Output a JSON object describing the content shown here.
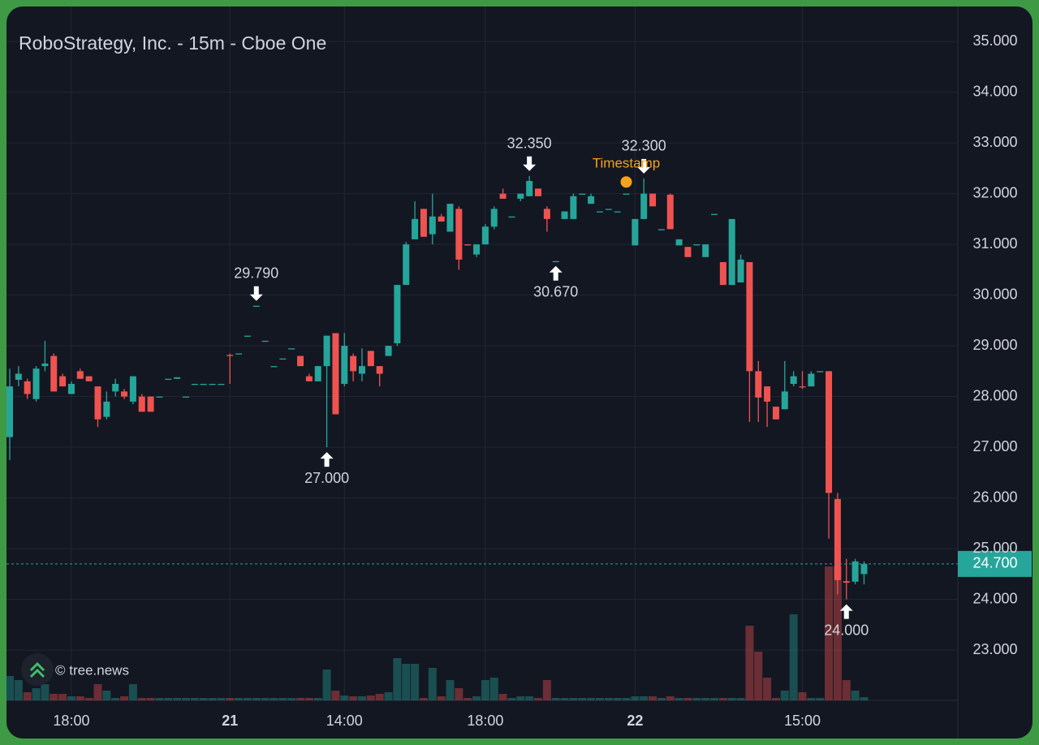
{
  "chart_data": {
    "type": "candlestick",
    "title": "RoboStrategy, Inc. - 15m - Cboe One",
    "watermark": "© tree.news",
    "categories": [
      null,
      null,
      null,
      null,
      null,
      null,
      null,
      "18:00",
      null,
      null,
      null,
      null,
      null,
      null,
      null,
      null,
      null,
      null,
      null,
      null,
      null,
      null,
      null,
      null,
      null,
      "21",
      null,
      null,
      null,
      null,
      null,
      null,
      null,
      null,
      null,
      null,
      null,
      null,
      "14:00",
      null,
      null,
      null,
      null,
      null,
      null,
      null,
      null,
      null,
      null,
      null,
      null,
      null,
      null,
      null,
      "18:00",
      null,
      null,
      null,
      null,
      null,
      null,
      null,
      null,
      null,
      null,
      null,
      null,
      null,
      null,
      null,
      null,
      "22",
      null,
      null,
      null,
      null,
      null,
      null,
      null,
      null,
      null,
      null,
      null,
      null,
      null,
      null,
      null,
      null,
      null,
      null,
      "15:00",
      null,
      null,
      null,
      null,
      null,
      null,
      null
    ],
    "series": [
      {
        "open": [
          27.2,
          28.33,
          28.3,
          27.95,
          28.6,
          28.8,
          28.4,
          28.05,
          28.5,
          28.4,
          28.2,
          27.6,
          28.1,
          28.1,
          27.9,
          28.0,
          28.0,
          28.0,
          28.35,
          28.35,
          28.0,
          28.25,
          28.25,
          28.25,
          28.25,
          28.82,
          28.85,
          29.2,
          29.79,
          29.1,
          28.6,
          28.75,
          28.95,
          28.8,
          28.4,
          28.3,
          28.6,
          29.25,
          28.25,
          28.8,
          28.45,
          28.9,
          28.6,
          28.8,
          29.05,
          30.2,
          31.1,
          31.7,
          31.2,
          31.55,
          31.25,
          31.7,
          31.0,
          30.8,
          31.0,
          31.35,
          32.0,
          31.55,
          31.9,
          31.95,
          32.1,
          31.7,
          30.67,
          31.5,
          31.5,
          32.0,
          31.8,
          31.65,
          31.7,
          31.65,
          32.0,
          30.98,
          31.5,
          32.0,
          31.3,
          31.98,
          30.98,
          30.95,
          31.0,
          30.75,
          31.6,
          30.65,
          30.2,
          30.25,
          30.65,
          28.5,
          28.2,
          27.8,
          27.75,
          28.25,
          28.2,
          28.2,
          28.5,
          28.5,
          25.98,
          24.36,
          24.35,
          24.5
        ],
        "high": [
          28.55,
          28.6,
          28.35,
          28.6,
          29.1,
          28.85,
          28.45,
          28.3,
          28.55,
          28.4,
          28.2,
          28.1,
          28.35,
          28.15,
          28.4,
          28.05,
          28.0,
          28.0,
          28.35,
          28.38,
          28.0,
          28.25,
          28.25,
          28.25,
          28.25,
          28.85,
          28.85,
          29.2,
          29.79,
          29.1,
          28.6,
          28.75,
          28.95,
          28.8,
          28.45,
          28.6,
          29.2,
          29.25,
          29.25,
          28.85,
          28.95,
          28.9,
          28.6,
          29.0,
          30.2,
          31.05,
          31.85,
          31.7,
          32.0,
          31.6,
          31.8,
          31.75,
          31.0,
          31.0,
          31.4,
          31.75,
          32.1,
          31.55,
          32.0,
          32.35,
          32.1,
          31.75,
          30.67,
          31.65,
          32.0,
          32.0,
          32.0,
          31.65,
          31.7,
          31.65,
          32.0,
          31.5,
          32.3,
          32.0,
          31.3,
          32.0,
          31.1,
          30.95,
          31.0,
          31.0,
          31.6,
          30.65,
          31.5,
          30.8,
          30.65,
          28.7,
          28.2,
          27.8,
          28.7,
          28.5,
          28.5,
          28.5,
          28.5,
          28.5,
          26.1,
          24.8,
          24.8,
          24.75
        ],
        "low": [
          26.75,
          28.2,
          27.95,
          27.9,
          28.5,
          28.1,
          28.2,
          28.05,
          28.35,
          28.3,
          27.4,
          27.55,
          28.0,
          27.95,
          27.85,
          27.7,
          27.7,
          28.0,
          28.35,
          28.35,
          28.0,
          28.25,
          28.25,
          28.25,
          28.25,
          28.25,
          28.85,
          29.2,
          29.79,
          29.1,
          28.6,
          28.75,
          28.95,
          28.6,
          28.3,
          28.3,
          27.0,
          27.65,
          28.2,
          28.3,
          28.3,
          28.6,
          28.2,
          28.8,
          29.0,
          30.2,
          31.1,
          31.15,
          31.0,
          31.45,
          31.25,
          30.5,
          30.98,
          30.75,
          31.0,
          31.3,
          31.9,
          31.55,
          31.85,
          31.95,
          31.95,
          31.25,
          30.67,
          31.5,
          31.5,
          32.0,
          31.8,
          31.65,
          31.7,
          31.65,
          32.0,
          30.98,
          31.5,
          31.75,
          31.3,
          31.3,
          30.98,
          30.75,
          31.0,
          30.75,
          31.6,
          30.2,
          30.2,
          30.25,
          27.5,
          27.5,
          27.4,
          27.55,
          27.75,
          28.2,
          28.15,
          28.2,
          28.5,
          25.2,
          24.1,
          24.0,
          24.3,
          24.3
        ],
        "close": [
          28.2,
          28.45,
          28.05,
          28.55,
          28.65,
          28.1,
          28.2,
          28.25,
          28.35,
          28.3,
          27.55,
          27.9,
          28.25,
          28.0,
          28.4,
          27.7,
          27.7,
          28.0,
          28.35,
          28.38,
          28.0,
          28.25,
          28.25,
          28.25,
          28.25,
          28.8,
          28.85,
          29.2,
          29.79,
          29.1,
          28.6,
          28.75,
          28.95,
          28.6,
          28.3,
          28.6,
          29.2,
          27.65,
          29.0,
          28.5,
          28.6,
          28.6,
          28.45,
          29.0,
          30.2,
          31.0,
          31.5,
          31.15,
          31.55,
          31.45,
          31.8,
          30.7,
          30.98,
          31.0,
          31.35,
          31.7,
          31.9,
          31.55,
          32.0,
          32.25,
          31.95,
          31.5,
          30.67,
          31.65,
          31.95,
          32.0,
          31.95,
          31.65,
          31.7,
          31.65,
          32.0,
          31.5,
          32.0,
          31.75,
          31.3,
          31.3,
          31.1,
          30.75,
          31.0,
          31.0,
          31.6,
          30.2,
          31.5,
          30.7,
          28.5,
          27.98,
          27.9,
          27.55,
          28.1,
          28.4,
          28.18,
          28.45,
          28.5,
          26.1,
          24.38,
          24.33,
          24.75,
          24.7
        ],
        "volume": [
          30,
          25,
          10,
          15,
          20,
          8,
          8,
          5,
          5,
          3,
          20,
          12,
          3,
          5,
          20,
          3,
          3,
          3,
          3,
          3,
          3,
          3,
          3,
          3,
          3,
          3,
          3,
          3,
          3,
          3,
          3,
          3,
          3,
          3,
          3,
          3,
          38,
          12,
          6,
          5,
          5,
          6,
          8,
          10,
          52,
          45,
          45,
          3,
          40,
          5,
          25,
          15,
          3,
          5,
          25,
          28,
          8,
          3,
          5,
          5,
          3,
          25,
          3,
          3,
          3,
          3,
          3,
          3,
          3,
          3,
          3,
          5,
          5,
          5,
          3,
          5,
          3,
          3,
          3,
          3,
          3,
          3,
          3,
          3,
          92,
          60,
          28,
          3,
          12,
          106,
          10,
          3,
          3,
          165,
          165,
          25,
          12,
          4
        ]
      }
    ],
    "up_color": "#26a69a",
    "down_color": "#ef5350",
    "ylim": [
      22.01,
      35.69
    ],
    "yticks": [
      {
        "value": 23,
        "label": "23.000"
      },
      {
        "value": 24,
        "label": "24.000"
      },
      {
        "value": 25,
        "label": "25.000"
      },
      {
        "value": 26,
        "label": "26.000"
      },
      {
        "value": 27,
        "label": "27.000"
      },
      {
        "value": 28,
        "label": "28.000"
      },
      {
        "value": 29,
        "label": "29.000"
      },
      {
        "value": 30,
        "label": "30.000"
      },
      {
        "value": 31,
        "label": "31.000"
      },
      {
        "value": 32,
        "label": "32.000"
      },
      {
        "value": 33,
        "label": "33.000"
      },
      {
        "value": 34,
        "label": "34.000"
      },
      {
        "value": 35,
        "label": "35.000"
      }
    ],
    "grid": true,
    "last_price": {
      "value": 24.7,
      "label": "24.700"
    },
    "annotations": [
      {
        "candle": 28,
        "kind": "high",
        "value": 29.79,
        "label": "29.790"
      },
      {
        "candle": 59,
        "kind": "high",
        "value": 32.35,
        "label": "32.350"
      },
      {
        "candle": 72,
        "kind": "high",
        "value": 32.3,
        "label": "32.300"
      },
      {
        "candle": 36,
        "kind": "low",
        "value": 27.0,
        "label": "27.000"
      },
      {
        "candle": 62,
        "kind": "low",
        "value": 30.67,
        "label": "30.670"
      },
      {
        "candle": 95,
        "kind": "low",
        "value": 24.0,
        "label": "24.000"
      }
    ],
    "timestamp": {
      "label": "Timestamp",
      "candle": 70,
      "value": 32.23
    }
  }
}
